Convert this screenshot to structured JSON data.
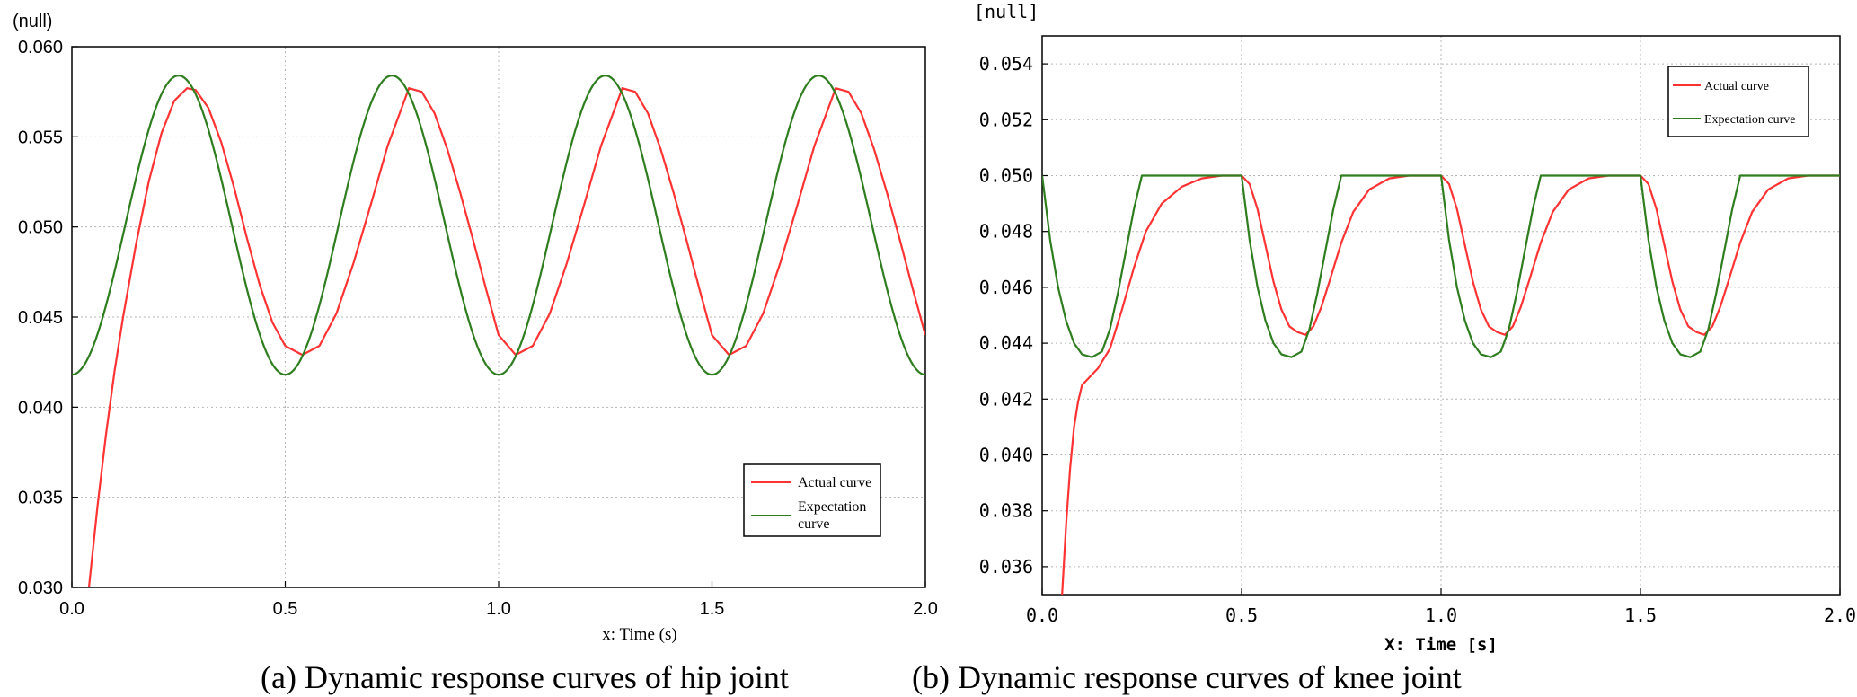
{
  "chart_data": [
    {
      "type": "line",
      "caption": "(a) Dynamic response curves of hip joint",
      "yunit": "(null)",
      "xlabel": "x: Time (s)",
      "xlim": [
        0,
        2.0
      ],
      "ylim": [
        0.03,
        0.06
      ],
      "x_ticks": [
        "0.0",
        "0.5",
        "1.0",
        "1.5",
        "2.0"
      ],
      "y_ticks": [
        "0.030",
        "0.035",
        "0.040",
        "0.045",
        "0.050",
        "0.055",
        "0.060"
      ],
      "grid": true,
      "legend_position": "bottom-right",
      "series": [
        {
          "name": "Actual curve",
          "color": "#ff3333",
          "x": [
            0.04,
            0.06,
            0.08,
            0.1,
            0.12,
            0.15,
            0.18,
            0.21,
            0.24,
            0.27,
            0.29,
            0.32,
            0.35,
            0.38,
            0.41,
            0.44,
            0.47,
            0.5,
            0.54,
            0.58,
            0.62,
            0.66,
            0.7,
            0.74,
            0.79,
            0.82,
            0.85,
            0.88,
            0.91,
            0.94,
            0.97,
            1.0,
            1.04,
            1.08,
            1.12,
            1.16,
            1.2,
            1.24,
            1.29,
            1.32,
            1.35,
            1.38,
            1.41,
            1.44,
            1.47,
            1.5,
            1.54,
            1.58,
            1.62,
            1.66,
            1.7,
            1.74,
            1.79,
            1.82,
            1.85,
            1.88,
            1.91,
            1.94,
            1.97,
            2.0
          ],
          "values": [
            0.03,
            0.0345,
            0.0385,
            0.042,
            0.045,
            0.049,
            0.0525,
            0.0552,
            0.057,
            0.0577,
            0.0576,
            0.0566,
            0.0547,
            0.0522,
            0.0494,
            0.0468,
            0.0447,
            0.0434,
            0.0429,
            0.0434,
            0.0452,
            0.048,
            0.0512,
            0.0545,
            0.0577,
            0.0575,
            0.0563,
            0.0543,
            0.0519,
            0.0493,
            0.0466,
            0.044,
            0.0429,
            0.0434,
            0.0452,
            0.048,
            0.0512,
            0.0545,
            0.0577,
            0.0575,
            0.0563,
            0.0543,
            0.0519,
            0.0493,
            0.0466,
            0.044,
            0.0429,
            0.0434,
            0.0452,
            0.048,
            0.0512,
            0.0545,
            0.0577,
            0.0575,
            0.0563,
            0.0543,
            0.0519,
            0.0493,
            0.0466,
            0.044
          ]
        },
        {
          "name": "Expectation curve",
          "color": "#2e7d1e",
          "function": "0.0501 - 0.0083*cos(4*pi*x)",
          "samples": 400
        }
      ],
      "legend": {
        "entries": [
          "Actual curve",
          "Expectation curve"
        ],
        "expectation_line2": "curve",
        "expectation_line1": "Expectation"
      }
    },
    {
      "type": "line",
      "caption": "(b) Dynamic response curves of knee joint",
      "yunit": "[null]",
      "xlabel": "X: Time [s]",
      "xlim": [
        0,
        2.0
      ],
      "ylim": [
        0.035,
        0.055
      ],
      "x_ticks": [
        "0.0",
        "0.5",
        "1.0",
        "1.5",
        "2.0"
      ],
      "y_ticks": [
        "0.036",
        "0.038",
        "0.040",
        "0.042",
        "0.044",
        "0.046",
        "0.048",
        "0.050",
        "0.052",
        "0.054"
      ],
      "grid": true,
      "legend_position": "top-right",
      "series": [
        {
          "name": "Actual curve",
          "color": "#ff3333",
          "x": [
            0.05,
            0.06,
            0.07,
            0.08,
            0.09,
            0.1,
            0.12,
            0.14,
            0.17,
            0.2,
            0.23,
            0.26,
            0.3,
            0.35,
            0.4,
            0.45,
            0.5,
            0.52,
            0.54,
            0.56,
            0.58,
            0.6,
            0.62,
            0.64,
            0.66,
            0.68,
            0.7,
            0.72,
            0.75,
            0.78,
            0.82,
            0.87,
            0.92,
            0.97,
            1.0,
            1.02,
            1.04,
            1.06,
            1.08,
            1.1,
            1.12,
            1.14,
            1.16,
            1.18,
            1.2,
            1.22,
            1.25,
            1.28,
            1.32,
            1.37,
            1.42,
            1.47,
            1.5,
            1.52,
            1.54,
            1.56,
            1.58,
            1.6,
            1.62,
            1.64,
            1.66,
            1.68,
            1.7,
            1.72,
            1.75,
            1.78,
            1.82,
            1.87,
            1.92,
            1.97,
            2.0
          ],
          "values": [
            0.035,
            0.0375,
            0.0395,
            0.041,
            0.0419,
            0.0425,
            0.0428,
            0.0431,
            0.0438,
            0.0452,
            0.0467,
            0.048,
            0.049,
            0.0496,
            0.0499,
            0.05,
            0.05,
            0.0497,
            0.0488,
            0.0475,
            0.0462,
            0.0452,
            0.0446,
            0.0444,
            0.0443,
            0.0446,
            0.0453,
            0.0462,
            0.0476,
            0.0487,
            0.0495,
            0.0499,
            0.05,
            0.05,
            0.05,
            0.0497,
            0.0488,
            0.0475,
            0.0462,
            0.0452,
            0.0446,
            0.0444,
            0.0443,
            0.0446,
            0.0453,
            0.0462,
            0.0476,
            0.0487,
            0.0495,
            0.0499,
            0.05,
            0.05,
            0.05,
            0.0497,
            0.0488,
            0.0475,
            0.0462,
            0.0452,
            0.0446,
            0.0444,
            0.0443,
            0.0446,
            0.0453,
            0.0462,
            0.0476,
            0.0487,
            0.0495,
            0.0499,
            0.05,
            0.05,
            0.05
          ]
        },
        {
          "name": "Expectation curve",
          "color": "#2e7d1e",
          "x": [
            0.0,
            0.02,
            0.04,
            0.06,
            0.08,
            0.1,
            0.125,
            0.15,
            0.17,
            0.19,
            0.21,
            0.23,
            0.25,
            0.5,
            0.52,
            0.54,
            0.56,
            0.58,
            0.6,
            0.625,
            0.65,
            0.67,
            0.69,
            0.71,
            0.73,
            0.75,
            1.0,
            1.02,
            1.04,
            1.06,
            1.08,
            1.1,
            1.125,
            1.15,
            1.17,
            1.19,
            1.21,
            1.23,
            1.25,
            1.5,
            1.52,
            1.54,
            1.56,
            1.58,
            1.6,
            1.625,
            1.65,
            1.67,
            1.69,
            1.71,
            1.73,
            1.75,
            2.0
          ],
          "values": [
            0.05,
            0.0477,
            0.046,
            0.0448,
            0.044,
            0.0436,
            0.0435,
            0.0437,
            0.0445,
            0.0458,
            0.0473,
            0.0488,
            0.05,
            0.05,
            0.0477,
            0.046,
            0.0448,
            0.044,
            0.0436,
            0.0435,
            0.0437,
            0.0445,
            0.0458,
            0.0473,
            0.0488,
            0.05,
            0.05,
            0.0477,
            0.046,
            0.0448,
            0.044,
            0.0436,
            0.0435,
            0.0437,
            0.0445,
            0.0458,
            0.0473,
            0.0488,
            0.05,
            0.05,
            0.0477,
            0.046,
            0.0448,
            0.044,
            0.0436,
            0.0435,
            0.0437,
            0.0445,
            0.0458,
            0.0473,
            0.0488,
            0.05,
            0.05
          ]
        }
      ],
      "legend": {
        "entries": [
          "Actual curve",
          "Expectation curve"
        ]
      }
    }
  ]
}
